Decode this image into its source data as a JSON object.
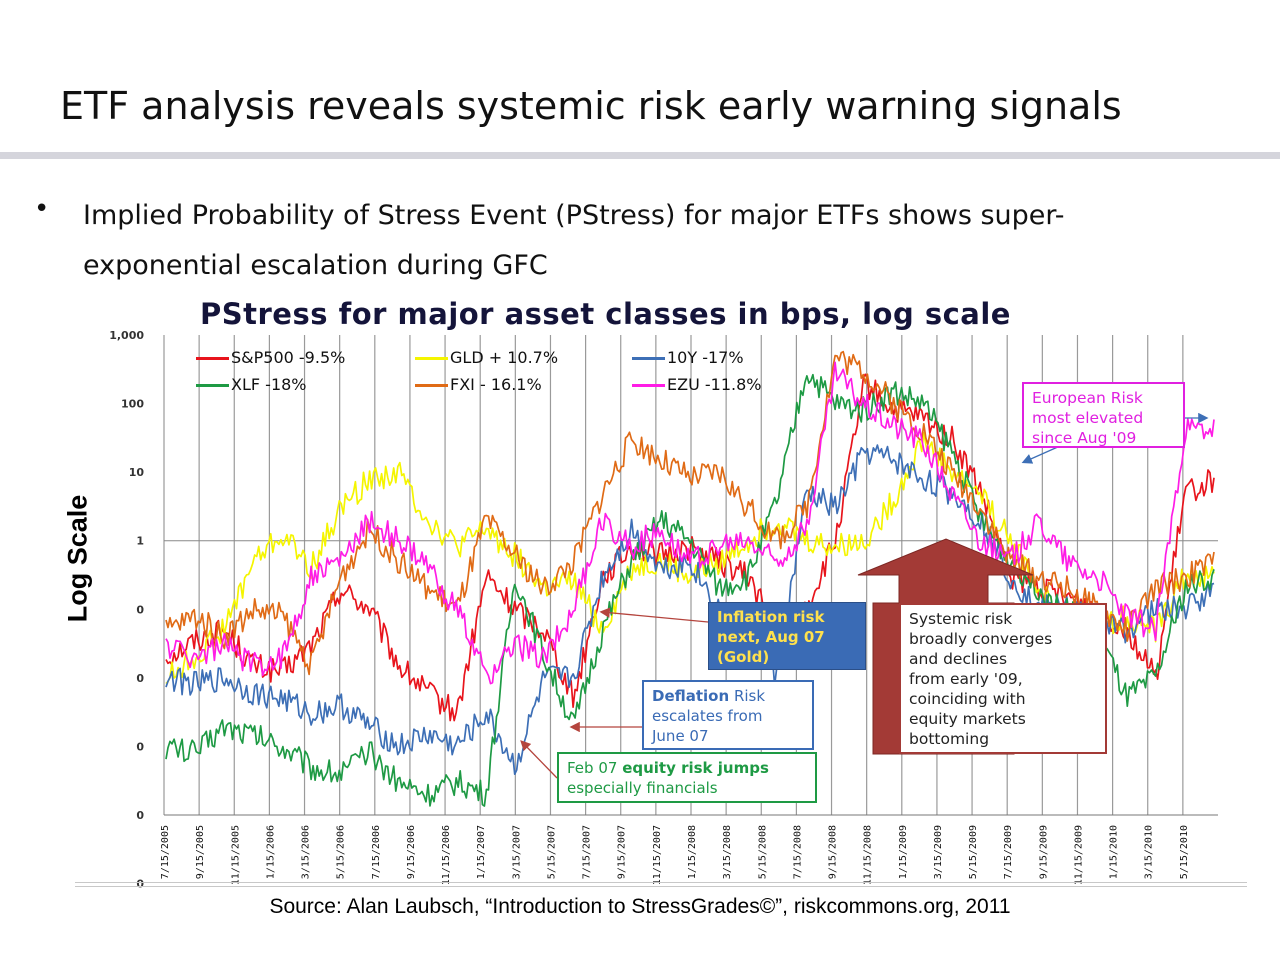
{
  "slide": {
    "title": "ETF analysis reveals systemic risk early warning signals",
    "bullet_symbol": "•",
    "bullet": "Implied Probability of Stress Event (PStress) for major ETFs shows  super-exponential escalation during GFC",
    "source": "Source: Alan Laubsch, “Introduction to StressGrades©”, riskcommons.org, 2011"
  },
  "chart_data": {
    "type": "line",
    "title": "PStress for major asset classes in bps, log scale",
    "ylabel": "Log Scale",
    "y_scale": "log",
    "ylim": [
      0.0001,
      1000
    ],
    "y_tick_labels": [
      "1,000",
      "100",
      "10",
      "1",
      "0",
      "0",
      "0",
      "0",
      "0"
    ],
    "x_tick_labels": [
      "7/15/2005",
      "9/15/2005",
      "11/15/2005",
      "1/15/2006",
      "3/15/2006",
      "5/15/2006",
      "7/15/2006",
      "9/15/2006",
      "11/15/2006",
      "1/15/2007",
      "3/15/2007",
      "5/15/2007",
      "7/15/2007",
      "9/15/2007",
      "11/15/2007",
      "1/15/2008",
      "3/15/2008",
      "5/15/2008",
      "7/15/2008",
      "9/15/2008",
      "11/15/2008",
      "1/15/2009",
      "3/15/2009",
      "5/15/2009",
      "7/15/2009",
      "9/15/2009",
      "11/15/2009",
      "1/15/2010",
      "3/15/2010",
      "5/15/2010"
    ],
    "grid": "vertical",
    "legend_position": "top-left",
    "series": [
      {
        "name": "S&P500 -9.5%",
        "color": "#e8141c",
        "values": [
          0.02,
          0.035,
          0.05,
          0.015,
          0.012,
          0.03,
          0.2,
          0.1,
          0.015,
          0.006,
          0.003,
          0.3,
          0.1,
          0.05,
          0.005,
          0.3,
          0.8,
          0.6,
          0.8,
          0.5,
          0.3,
          0.05,
          0.1,
          1.0,
          200,
          80,
          60,
          30,
          5,
          0.3,
          0.2,
          0.15,
          0.1,
          0.05,
          0.01,
          5,
          8
        ]
      },
      {
        "name": "GLD + 10.7%",
        "color": "#f5f500",
        "values": [
          0.01,
          0.02,
          0.05,
          0.5,
          1.2,
          0.4,
          3,
          8,
          10,
          2,
          0.8,
          1.5,
          0.6,
          0.2,
          0.25,
          0.05,
          0.4,
          0.5,
          0.3,
          0.5,
          1,
          2,
          1,
          0.8,
          1.0,
          4,
          30,
          10,
          5,
          1,
          0.2,
          0.05,
          0.05,
          0.08,
          0.05,
          0.3,
          0.3
        ]
      },
      {
        "name": "10Y -17%",
        "color": "#3d6fb6",
        "values": [
          0.01,
          0.008,
          0.01,
          0.006,
          0.005,
          0.003,
          0.004,
          0.002,
          0.001,
          0.0015,
          0.001,
          0.003,
          0.0005,
          0.01,
          0.01,
          0.3,
          1.5,
          0.4,
          0.5,
          0.1,
          0.05,
          0.01,
          5,
          3,
          20,
          15,
          8,
          5,
          2,
          0.3,
          0.1,
          0.12,
          0.06,
          0.05,
          0.1,
          0.1,
          0.2
        ]
      },
      {
        "name": "XLF -18%",
        "color": "#1e9a44",
        "values": [
          0.001,
          0.0008,
          0.002,
          0.0015,
          0.001,
          0.0005,
          0.0004,
          0.0008,
          0.0003,
          0.0002,
          0.0003,
          0.0002,
          0.3,
          0.02,
          0.002,
          0.05,
          0.5,
          2,
          1,
          0.2,
          0.3,
          4,
          300,
          100,
          80,
          150,
          100,
          20,
          2,
          0.5,
          0.2,
          0.1,
          0.05,
          0.005,
          0.01,
          0.2,
          0.3
        ]
      },
      {
        "name": "FXI - 16.1%",
        "color": "#e06b16",
        "values": [
          0.05,
          0.08,
          0.04,
          0.1,
          0.08,
          0.015,
          0.3,
          1.5,
          0.5,
          0.2,
          0.1,
          2,
          0.6,
          0.2,
          0.5,
          5,
          30,
          15,
          8,
          10,
          3,
          1,
          3,
          500,
          300,
          100,
          40,
          10,
          3,
          0.5,
          0.3,
          0.2,
          0.1,
          0.05,
          0.2,
          0.3,
          0.5
        ]
      },
      {
        "name": "EZU -11.8%",
        "color": "#ff1ce6",
        "values": [
          0.03,
          0.02,
          0.03,
          0.015,
          0.02,
          0.3,
          0.5,
          2,
          1,
          0.4,
          0.1,
          0.01,
          0.03,
          0.02,
          0.1,
          2,
          0.8,
          1.5,
          0.5,
          0.8,
          1,
          0.5,
          1.5,
          300,
          100,
          50,
          30,
          5,
          1,
          0.5,
          2,
          0.5,
          0.3,
          0.08,
          0.05,
          40,
          40
        ]
      }
    ],
    "annotations": [
      {
        "lines": [
          "Inflation risk",
          "next,  Aug 07",
          "(Gold)"
        ]
      },
      {
        "lines": [
          [
            "Deflation",
            " Risk"
          ],
          "escalates from",
          "June 07"
        ]
      },
      {
        "lines": [
          [
            "Feb 07 ",
            "equity risk jumps"
          ],
          "especially  financials"
        ]
      },
      {
        "lines": [
          "Systemic risk",
          "broadly converges",
          "and declines",
          "from early '09,",
          "coinciding with",
          "equity markets",
          "bottoming"
        ]
      },
      {
        "lines": [
          "European Risk",
          "most elevated",
          "since Aug '09"
        ]
      }
    ]
  }
}
